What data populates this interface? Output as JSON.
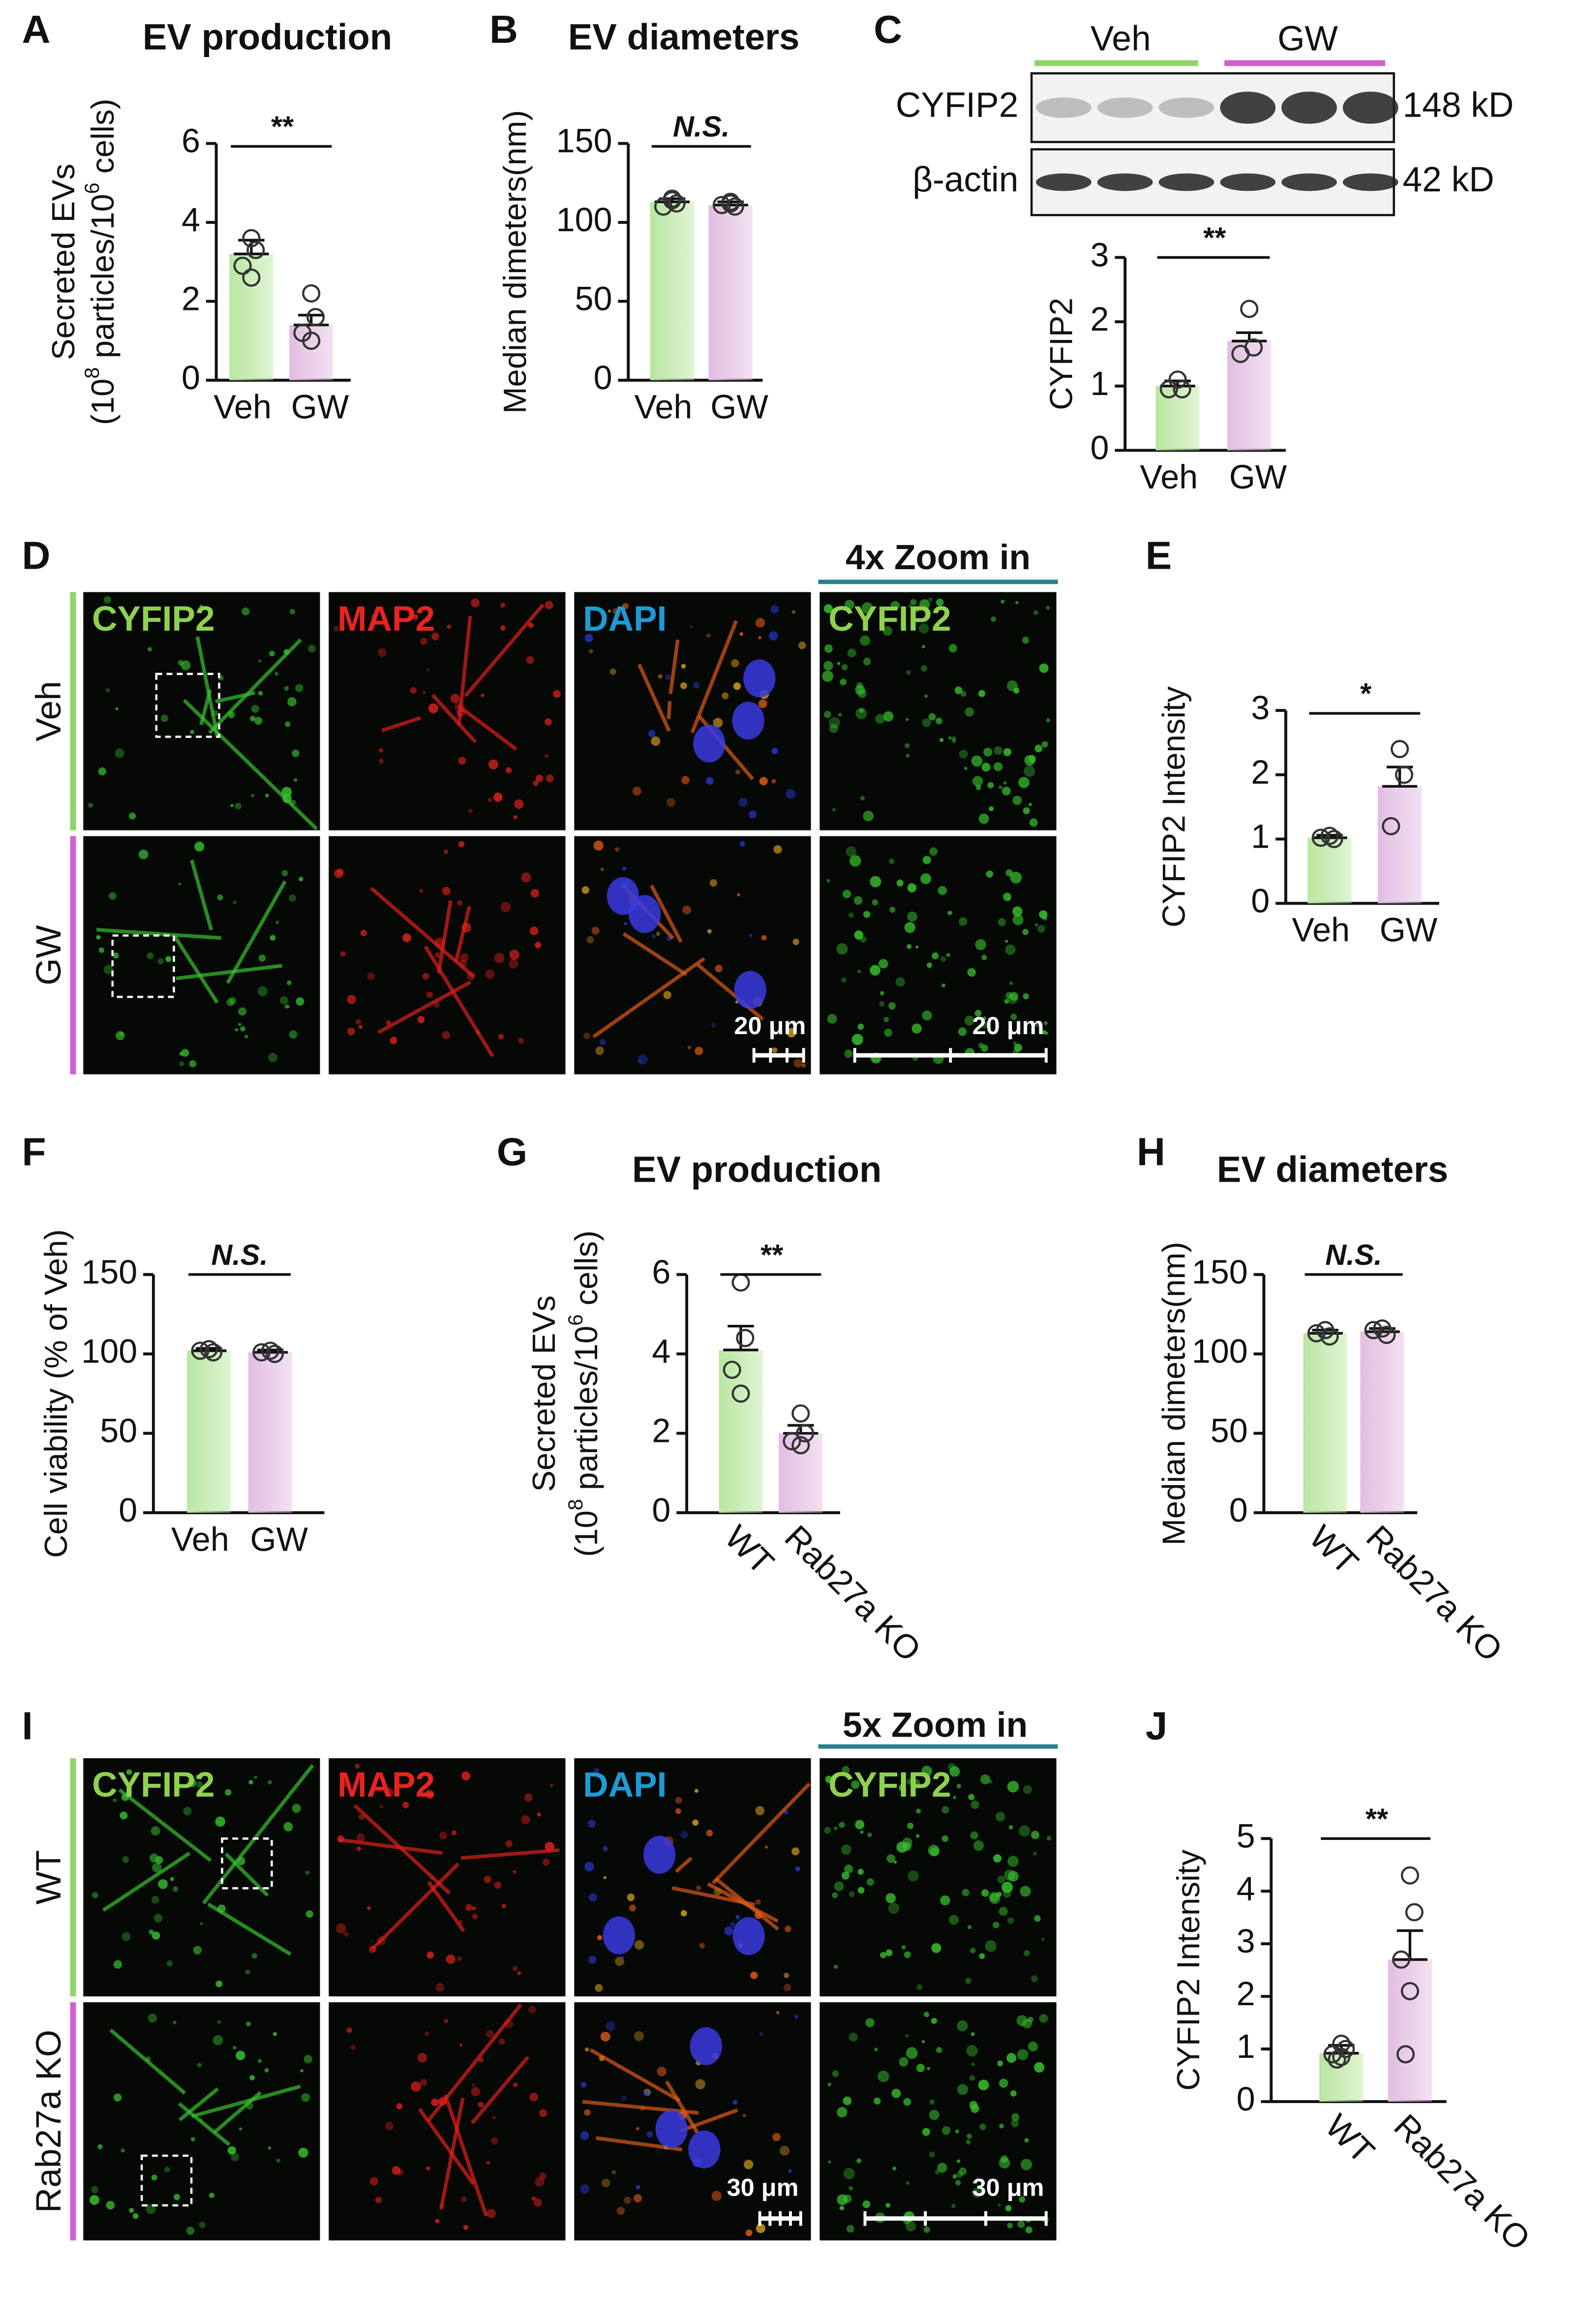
{
  "chart_data": [
    {
      "type": "bar",
      "title": "EV production",
      "ylabel": [
        "Secreted EVs",
        [
          "(10",
          "8",
          " particles/10",
          "6",
          " cells)"
        ]
      ],
      "categories": [
        "Veh",
        "GW"
      ],
      "values": [
        3.2,
        1.4
      ],
      "errors": [
        0.35,
        0.25
      ],
      "points": [
        [
          3.6,
          3.3,
          2.9,
          2.6
        ],
        [
          2.2,
          1.6,
          1.2,
          1.0
        ]
      ],
      "colors": [
        "#b9e6a0",
        "#e2bde2"
      ],
      "annotation": "**",
      "ylim": [
        0,
        6
      ],
      "yticks": [
        0,
        2,
        4,
        6
      ]
    },
    {
      "type": "bar",
      "title": "EV diameters",
      "ylabel": [
        "Median dimeters(nm)"
      ],
      "categories": [
        "Veh",
        "GW"
      ],
      "values": [
        113,
        111
      ],
      "errors": [
        2,
        2
      ],
      "points": [
        [
          115,
          112,
          110,
          114
        ],
        [
          113,
          110,
          111,
          112
        ]
      ],
      "colors": [
        "#b9e6a0",
        "#e2bde2"
      ],
      "annotation": "N.S.",
      "ylim": [
        0,
        150
      ],
      "yticks": [
        0,
        50,
        100,
        150
      ]
    },
    {
      "type": "bar",
      "ylabel": [
        "CYFIP2"
      ],
      "categories": [
        "Veh",
        "GW"
      ],
      "values": [
        1.0,
        1.7
      ],
      "errors": [
        0.08,
        0.13
      ],
      "points": [
        [
          1.1,
          0.95,
          0.95
        ],
        [
          2.2,
          1.6,
          1.5
        ]
      ],
      "colors": [
        "#b9e6a0",
        "#e2bde2"
      ],
      "annotation": "**",
      "ylim": [
        0,
        3
      ],
      "yticks": [
        0,
        1,
        2,
        3
      ]
    },
    {
      "type": "bar",
      "ylabel": [
        "CYFIP2  Intensity"
      ],
      "categories": [
        "Veh",
        "GW"
      ],
      "values": [
        1.02,
        1.82
      ],
      "errors": [
        0.04,
        0.3
      ],
      "points": [
        [
          1.05,
          1.0,
          1.02
        ],
        [
          2.4,
          2.0,
          1.2
        ]
      ],
      "colors": [
        "#b9e6a0",
        "#e2bde2"
      ],
      "annotation": "*",
      "ylim": [
        0,
        3
      ],
      "yticks": [
        0,
        1,
        2,
        3
      ]
    },
    {
      "type": "bar",
      "ylabel": [
        "Cell viability (% of Veh)"
      ],
      "categories": [
        "Veh",
        "GW"
      ],
      "values": [
        102,
        101
      ],
      "errors": [
        1.5,
        1.5
      ],
      "points": [
        [
          103,
          101,
          102
        ],
        [
          102,
          100,
          101
        ]
      ],
      "colors": [
        "#b9e6a0",
        "#e2bde2"
      ],
      "annotation": "N.S.",
      "ylim": [
        0,
        150
      ],
      "yticks": [
        0,
        50,
        100,
        150
      ]
    },
    {
      "type": "bar",
      "title": "EV production",
      "ylabel": [
        "Secreted EVs",
        [
          "(10",
          "8",
          " particles/10",
          "6",
          " cells)"
        ]
      ],
      "categories": [
        "WT",
        "Rab27a KO"
      ],
      "values": [
        4.1,
        2.0
      ],
      "errors": [
        0.6,
        0.2
      ],
      "points": [
        [
          5.8,
          4.4,
          3.6,
          3.0
        ],
        [
          2.5,
          2.0,
          1.8,
          1.7
        ]
      ],
      "colors": [
        "#b9e6a0",
        "#e2bde2"
      ],
      "annotation": "**",
      "ylim": [
        0,
        6
      ],
      "yticks": [
        0,
        2,
        4,
        6
      ]
    },
    {
      "type": "bar",
      "title": "EV diameters",
      "ylabel": [
        "Median dimeters(nm)"
      ],
      "categories": [
        "WT",
        "Rab27a KO"
      ],
      "values": [
        113,
        114
      ],
      "errors": [
        2,
        2
      ],
      "points": [
        [
          115,
          111,
          113
        ],
        [
          116,
          112,
          115
        ]
      ],
      "colors": [
        "#b9e6a0",
        "#e2bde2"
      ],
      "annotation": "N.S.",
      "ylim": [
        0,
        150
      ],
      "yticks": [
        0,
        50,
        100,
        150
      ]
    },
    {
      "type": "bar",
      "ylabel": [
        "CYFIP2  Intensity"
      ],
      "categories": [
        "WT",
        "Rab27a KO"
      ],
      "values": [
        0.92,
        2.7
      ],
      "errors": [
        0.15,
        0.55
      ],
      "points": [
        [
          1.1,
          1.0,
          0.9,
          0.85,
          0.8
        ],
        [
          4.3,
          3.6,
          2.7,
          2.1,
          0.9
        ]
      ],
      "colors": [
        "#b9e6a0",
        "#e2bde2"
      ],
      "annotation": "**",
      "ylim": [
        0,
        5
      ],
      "yticks": [
        0,
        1,
        2,
        3,
        4,
        5
      ]
    }
  ],
  "panel_letters": [
    "A",
    "B",
    "C",
    "D",
    "E",
    "F",
    "G",
    "H",
    "I",
    "J"
  ],
  "blot": {
    "groups": [
      "Veh",
      "GW"
    ],
    "rows": [
      {
        "label": "CYFIP2",
        "size": "148 kD"
      },
      {
        "label": "β-actin",
        "size": "42 kD"
      }
    ]
  },
  "micrographs": [
    {
      "rows": [
        "Veh",
        "GW"
      ],
      "columns": [
        "CYFIP2",
        "MAP2",
        "DAPI",
        "CYFIP2"
      ],
      "zoom_label": "4x Zoom in",
      "scale_labels": [
        "20 μm",
        "20 μm"
      ]
    },
    {
      "rows": [
        "WT",
        "Rab27a KO"
      ],
      "columns": [
        "CYFIP2",
        "MAP2",
        "DAPI",
        "CYFIP2"
      ],
      "zoom_label": "5x Zoom in",
      "scale_labels": [
        "30 μm",
        "30 μm"
      ]
    }
  ]
}
